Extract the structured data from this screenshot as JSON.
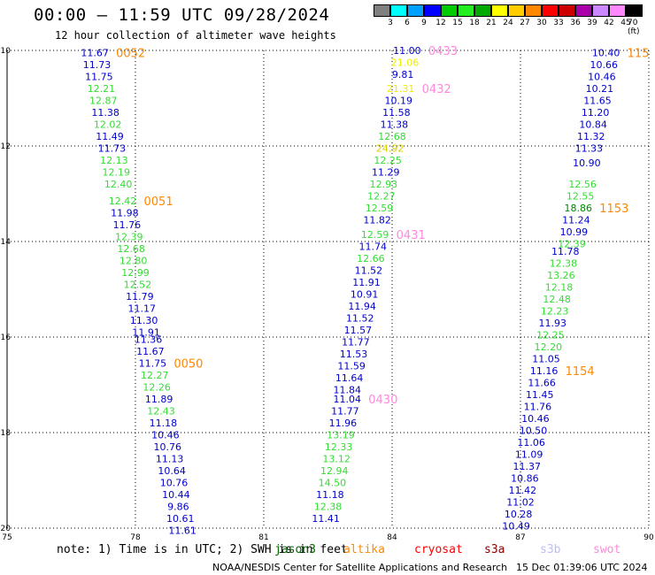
{
  "title": "00:00 — 11:59 UTC 09/28/2024",
  "subtitle": "12 hour collection of altimeter wave heights",
  "legend": {
    "unit": "70 (ft)",
    "ticks": [
      "3",
      "6",
      "9",
      "12",
      "15",
      "18",
      "21",
      "24",
      "27",
      "30",
      "33",
      "36",
      "39",
      "42",
      "45",
      "70"
    ],
    "colors": [
      "#808080",
      "#00ffff",
      "#00a0ff",
      "#0000ff",
      "#00cc00",
      "#22ee22",
      "#00aa00",
      "#ffff00",
      "#ffcc00",
      "#ff8800",
      "#ff0000",
      "#cc0000",
      "#aa00aa",
      "#cc88ff",
      "#ff88ff",
      "#000000"
    ]
  },
  "map": {
    "x_ticks": [
      "75",
      "78",
      "81",
      "84",
      "87",
      "90"
    ],
    "y_ticks": [
      "-10",
      "-12",
      "-14",
      "-16",
      "-18",
      "-20"
    ]
  },
  "chart_data": {
    "type": "scatter",
    "xlim": [
      75,
      90
    ],
    "ylim": [
      -20,
      -10
    ],
    "grid": true,
    "passes": [
      {
        "label": "0052",
        "satellite": "altika",
        "label_color": "#ff8800",
        "points": [
          {
            "lon": 77.05,
            "lat": -10.05,
            "v": "11.67",
            "c": "#0000cc"
          },
          {
            "lon": 77.1,
            "lat": -10.3,
            "v": "11.73",
            "c": "#0000cc"
          },
          {
            "lon": 77.15,
            "lat": -10.55,
            "v": "11.75",
            "c": "#0000cc"
          },
          {
            "lon": 77.2,
            "lat": -10.8,
            "v": "12.21",
            "c": "#33dd33"
          },
          {
            "lon": 77.25,
            "lat": -11.05,
            "v": "12.87",
            "c": "#33dd33"
          },
          {
            "lon": 77.3,
            "lat": -11.3,
            "v": "11.38",
            "c": "#0000cc"
          },
          {
            "lon": 77.35,
            "lat": -11.55,
            "v": "12.02",
            "c": "#33dd33"
          },
          {
            "lon": 77.4,
            "lat": -11.8,
            "v": "11.49",
            "c": "#0000cc"
          },
          {
            "lon": 77.45,
            "lat": -12.05,
            "v": "11.73",
            "c": "#0000cc"
          },
          {
            "lon": 77.5,
            "lat": -12.3,
            "v": "12.13",
            "c": "#33dd33"
          },
          {
            "lon": 77.55,
            "lat": -12.55,
            "v": "12.19",
            "c": "#33dd33"
          },
          {
            "lon": 77.6,
            "lat": -12.8,
            "v": "12.40",
            "c": "#33dd33"
          }
        ]
      },
      {
        "label": "0051",
        "satellite": "altika",
        "label_color": "#ff8800",
        "points": [
          {
            "lon": 77.7,
            "lat": -13.15,
            "v": "12.42",
            "c": "#33dd33"
          },
          {
            "lon": 77.75,
            "lat": -13.4,
            "v": "11.98",
            "c": "#0000cc"
          },
          {
            "lon": 77.8,
            "lat": -13.65,
            "v": "11.76",
            "c": "#0000cc"
          },
          {
            "lon": 77.85,
            "lat": -13.9,
            "v": "12.39",
            "c": "#33dd33"
          },
          {
            "lon": 77.9,
            "lat": -14.15,
            "v": "12.68",
            "c": "#33dd33"
          },
          {
            "lon": 77.95,
            "lat": -14.4,
            "v": "12.80",
            "c": "#33dd33"
          },
          {
            "lon": 78.0,
            "lat": -14.65,
            "v": "12.99",
            "c": "#33dd33"
          },
          {
            "lon": 78.05,
            "lat": -14.9,
            "v": "12.52",
            "c": "#33dd33"
          },
          {
            "lon": 78.1,
            "lat": -15.15,
            "v": "11.79",
            "c": "#0000cc"
          },
          {
            "lon": 78.15,
            "lat": -15.4,
            "v": "11.17",
            "c": "#0000cc"
          },
          {
            "lon": 78.2,
            "lat": -15.65,
            "v": "11.30",
            "c": "#0000cc"
          },
          {
            "lon": 78.25,
            "lat": -15.9,
            "v": "11.91",
            "c": "#0000cc"
          }
        ]
      },
      {
        "label": "0050",
        "satellite": "altika",
        "label_color": "#ff8800",
        "points": [
          {
            "lon": 78.3,
            "lat": -16.05,
            "v": "11.36",
            "c": "#0000cc"
          },
          {
            "lon": 78.35,
            "lat": -16.3,
            "v": "11.67",
            "c": "#0000cc"
          },
          {
            "lon": 78.4,
            "lat": -16.55,
            "v": "11.75",
            "c": "#0000cc"
          },
          {
            "lon": 78.45,
            "lat": -16.8,
            "v": "12.27",
            "c": "#33dd33"
          },
          {
            "lon": 78.5,
            "lat": -17.05,
            "v": "12.26",
            "c": "#33dd33"
          },
          {
            "lon": 78.55,
            "lat": -17.3,
            "v": "11.89",
            "c": "#0000cc"
          },
          {
            "lon": 78.6,
            "lat": -17.55,
            "v": "12.43",
            "c": "#33dd33"
          },
          {
            "lon": 78.65,
            "lat": -17.8,
            "v": "11.18",
            "c": "#0000cc"
          },
          {
            "lon": 78.7,
            "lat": -18.05,
            "v": "10.46",
            "c": "#0000cc"
          },
          {
            "lon": 78.75,
            "lat": -18.3,
            "v": "10.76",
            "c": "#0000cc"
          },
          {
            "lon": 78.8,
            "lat": -18.55,
            "v": "11.13",
            "c": "#0000cc"
          },
          {
            "lon": 78.85,
            "lat": -18.8,
            "v": "10.64",
            "c": "#0000cc"
          },
          {
            "lon": 78.9,
            "lat": -19.05,
            "v": "10.76",
            "c": "#0000cc"
          },
          {
            "lon": 78.95,
            "lat": -19.3,
            "v": "10.44",
            "c": "#0000cc"
          },
          {
            "lon": 79.0,
            "lat": -19.55,
            "v": "9.86",
            "c": "#0000cc"
          },
          {
            "lon": 79.05,
            "lat": -19.8,
            "v": "10.61",
            "c": "#0000cc"
          },
          {
            "lon": 79.1,
            "lat": -20.05,
            "v": "11.61",
            "c": "#0000cc"
          }
        ]
      },
      {
        "label": "0433",
        "satellite": "swot",
        "label_color": "#ff88dd",
        "points": [
          {
            "lon": 84.35,
            "lat": -10.0,
            "v": "11.00",
            "c": "#0000cc"
          },
          {
            "lon": 84.3,
            "lat": -10.25,
            "v": "21.06",
            "c": "#eeee00"
          },
          {
            "lon": 84.25,
            "lat": -10.5,
            "v": "9.81",
            "c": "#0000cc"
          }
        ]
      },
      {
        "label": "0432",
        "satellite": "swot",
        "label_color": "#ff88dd",
        "points": [
          {
            "lon": 84.2,
            "lat": -10.8,
            "v": "21.31",
            "c": "#eeee00"
          },
          {
            "lon": 84.15,
            "lat": -11.05,
            "v": "10.19",
            "c": "#0000cc"
          },
          {
            "lon": 84.1,
            "lat": -11.3,
            "v": "11.58",
            "c": "#0000cc"
          },
          {
            "lon": 84.05,
            "lat": -11.55,
            "v": "11.38",
            "c": "#0000cc"
          },
          {
            "lon": 84.0,
            "lat": -11.8,
            "v": "12.68",
            "c": "#33dd33"
          },
          {
            "lon": 83.95,
            "lat": -12.05,
            "v": "24.92",
            "c": "#ddcc00"
          },
          {
            "lon": 83.9,
            "lat": -12.3,
            "v": "12.25",
            "c": "#33dd33"
          },
          {
            "lon": 83.85,
            "lat": -12.55,
            "v": "11.29",
            "c": "#0000cc"
          },
          {
            "lon": 83.8,
            "lat": -12.8,
            "v": "12.93",
            "c": "#33dd33"
          },
          {
            "lon": 83.75,
            "lat": -13.05,
            "v": "12.27",
            "c": "#33dd33"
          },
          {
            "lon": 83.7,
            "lat": -13.3,
            "v": "12.59",
            "c": "#33dd33"
          },
          {
            "lon": 83.65,
            "lat": -13.55,
            "v": "11.82",
            "c": "#0000cc"
          }
        ]
      },
      {
        "label": "0431",
        "satellite": "swot",
        "label_color": "#ff88dd",
        "points": [
          {
            "lon": 83.6,
            "lat": -13.85,
            "v": "12.59",
            "c": "#33dd33"
          },
          {
            "lon": 83.55,
            "lat": -14.1,
            "v": "11.74",
            "c": "#0000cc"
          },
          {
            "lon": 83.5,
            "lat": -14.35,
            "v": "12.66",
            "c": "#33dd33"
          },
          {
            "lon": 83.45,
            "lat": -14.6,
            "v": "11.52",
            "c": "#0000cc"
          },
          {
            "lon": 83.4,
            "lat": -14.85,
            "v": "11.91",
            "c": "#0000cc"
          },
          {
            "lon": 83.35,
            "lat": -15.1,
            "v": "10.91",
            "c": "#0000cc"
          },
          {
            "lon": 83.3,
            "lat": -15.35,
            "v": "11.94",
            "c": "#0000cc"
          },
          {
            "lon": 83.25,
            "lat": -15.6,
            "v": "11.52",
            "c": "#0000cc"
          },
          {
            "lon": 83.2,
            "lat": -15.85,
            "v": "11.57",
            "c": "#0000cc"
          },
          {
            "lon": 83.15,
            "lat": -16.1,
            "v": "11.77",
            "c": "#0000cc"
          },
          {
            "lon": 83.1,
            "lat": -16.35,
            "v": "11.53",
            "c": "#0000cc"
          },
          {
            "lon": 83.05,
            "lat": -16.6,
            "v": "11.59",
            "c": "#0000cc"
          },
          {
            "lon": 83.0,
            "lat": -16.85,
            "v": "11.64",
            "c": "#0000cc"
          },
          {
            "lon": 82.95,
            "lat": -17.1,
            "v": "11.84",
            "c": "#0000cc"
          }
        ]
      },
      {
        "label": "0430",
        "satellite": "swot",
        "label_color": "#ff88dd",
        "points": [
          {
            "lon": 82.95,
            "lat": -17.3,
            "v": "11.04",
            "c": "#0000cc"
          },
          {
            "lon": 82.9,
            "lat": -17.55,
            "v": "11.77",
            "c": "#0000cc"
          },
          {
            "lon": 82.85,
            "lat": -17.8,
            "v": "11.96",
            "c": "#0000cc"
          },
          {
            "lon": 82.8,
            "lat": -18.05,
            "v": "13.19",
            "c": "#33dd33"
          },
          {
            "lon": 82.75,
            "lat": -18.3,
            "v": "12.33",
            "c": "#33dd33"
          },
          {
            "lon": 82.7,
            "lat": -18.55,
            "v": "13.12",
            "c": "#33dd33"
          },
          {
            "lon": 82.65,
            "lat": -18.8,
            "v": "12.94",
            "c": "#33dd33"
          },
          {
            "lon": 82.6,
            "lat": -19.05,
            "v": "14.50",
            "c": "#33dd33"
          },
          {
            "lon": 82.55,
            "lat": -19.3,
            "v": "11.18",
            "c": "#0000cc"
          },
          {
            "lon": 82.5,
            "lat": -19.55,
            "v": "12.38",
            "c": "#33dd33"
          },
          {
            "lon": 82.45,
            "lat": -19.8,
            "v": "11.41",
            "c": "#0000cc"
          }
        ]
      },
      {
        "label": "115",
        "satellite": "altika",
        "label_color": "#ff8800",
        "points": [
          {
            "lon": 89.0,
            "lat": -10.05,
            "v": "10.40",
            "c": "#0000cc"
          },
          {
            "lon": 88.95,
            "lat": -10.3,
            "v": "10.66",
            "c": "#0000cc"
          },
          {
            "lon": 88.9,
            "lat": -10.55,
            "v": "10.46",
            "c": "#0000cc"
          },
          {
            "lon": 88.85,
            "lat": -10.8,
            "v": "10.21",
            "c": "#0000cc"
          },
          {
            "lon": 88.8,
            "lat": -11.05,
            "v": "11.65",
            "c": "#0000cc"
          },
          {
            "lon": 88.75,
            "lat": -11.3,
            "v": "11.20",
            "c": "#0000cc"
          },
          {
            "lon": 88.7,
            "lat": -11.55,
            "v": "10.84",
            "c": "#0000cc"
          },
          {
            "lon": 88.65,
            "lat": -11.8,
            "v": "11.32",
            "c": "#0000cc"
          },
          {
            "lon": 88.6,
            "lat": -12.05,
            "v": "11.33",
            "c": "#0000cc"
          },
          {
            "lon": 88.55,
            "lat": -12.35,
            "v": "10.90",
            "c": "#0000cc"
          }
        ]
      },
      {
        "label": "1153",
        "satellite": "altika",
        "label_color": "#ff8800",
        "points": [
          {
            "lon": 88.45,
            "lat": -12.8,
            "v": "12.56",
            "c": "#33dd33"
          },
          {
            "lon": 88.4,
            "lat": -13.05,
            "v": "12.55",
            "c": "#33dd33"
          },
          {
            "lon": 88.35,
            "lat": -13.3,
            "v": "18.86",
            "c": "#008800"
          },
          {
            "lon": 88.3,
            "lat": -13.55,
            "v": "11.24",
            "c": "#0000cc"
          },
          {
            "lon": 88.25,
            "lat": -13.8,
            "v": "10.99",
            "c": "#0000cc"
          },
          {
            "lon": 88.2,
            "lat": -14.05,
            "v": "12.39",
            "c": "#33dd33"
          }
        ]
      },
      {
        "label": "1154",
        "satellite": "altika",
        "label_color": "#ff8800",
        "points": [
          {
            "lon": 88.05,
            "lat": -14.2,
            "v": "11.78",
            "c": "#0000cc"
          },
          {
            "lon": 88.0,
            "lat": -14.45,
            "v": "12.38",
            "c": "#33dd33"
          },
          {
            "lon": 87.95,
            "lat": -14.7,
            "v": "13.26",
            "c": "#33dd33"
          },
          {
            "lon": 87.9,
            "lat": -14.95,
            "v": "12.18",
            "c": "#33dd33"
          },
          {
            "lon": 87.85,
            "lat": -15.2,
            "v": "12.48",
            "c": "#33dd33"
          },
          {
            "lon": 87.8,
            "lat": -15.45,
            "v": "12.23",
            "c": "#33dd33"
          },
          {
            "lon": 87.75,
            "lat": -15.7,
            "v": "11.93",
            "c": "#0000cc"
          },
          {
            "lon": 87.7,
            "lat": -15.95,
            "v": "12.25",
            "c": "#33dd33"
          },
          {
            "lon": 87.65,
            "lat": -16.2,
            "v": "12.20",
            "c": "#33dd33"
          },
          {
            "lon": 87.6,
            "lat": -16.45,
            "v": "11.05",
            "c": "#0000cc"
          },
          {
            "lon": 87.55,
            "lat": -16.7,
            "v": "11.16",
            "c": "#0000cc"
          },
          {
            "lon": 87.5,
            "lat": -16.95,
            "v": "11.66",
            "c": "#0000cc"
          },
          {
            "lon": 87.45,
            "lat": -17.2,
            "v": "11.45",
            "c": "#0000cc"
          },
          {
            "lon": 87.4,
            "lat": -17.45,
            "v": "11.76",
            "c": "#0000cc"
          },
          {
            "lon": 87.35,
            "lat": -17.7,
            "v": "10.46",
            "c": "#0000cc"
          },
          {
            "lon": 87.3,
            "lat": -17.95,
            "v": "10.50",
            "c": "#0000cc"
          },
          {
            "lon": 87.25,
            "lat": -18.2,
            "v": "11.06",
            "c": "#0000cc"
          },
          {
            "lon": 87.2,
            "lat": -18.45,
            "v": "11.09",
            "c": "#0000cc"
          },
          {
            "lon": 87.15,
            "lat": -18.7,
            "v": "11.37",
            "c": "#0000cc"
          },
          {
            "lon": 87.1,
            "lat": -18.95,
            "v": "10.86",
            "c": "#0000cc"
          },
          {
            "lon": 87.05,
            "lat": -19.2,
            "v": "11.42",
            "c": "#0000cc"
          },
          {
            "lon": 87.0,
            "lat": -19.45,
            "v": "11.02",
            "c": "#0000cc"
          },
          {
            "lon": 86.95,
            "lat": -19.7,
            "v": "10.28",
            "c": "#0000cc"
          },
          {
            "lon": 86.9,
            "lat": -19.95,
            "v": "10.49",
            "c": "#0000cc"
          }
        ]
      }
    ]
  },
  "footnote": "note: 1) Time is in UTC; 2) SWH is in feet",
  "satellites": [
    {
      "name": "jason3",
      "color": "#006600"
    },
    {
      "name": "altika",
      "color": "#ff8800"
    },
    {
      "name": "cryosat",
      "color": "#ff0000"
    },
    {
      "name": "s3a",
      "color": "#880000"
    },
    {
      "name": "s3b",
      "color": "#bbbbff"
    },
    {
      "name": "swot",
      "color": "#ff88dd"
    }
  ],
  "credit": "NOAA/NESDIS Center for Satellite Applications and Research",
  "stamp": "15 Dec 01:39:06 UTC 2024"
}
